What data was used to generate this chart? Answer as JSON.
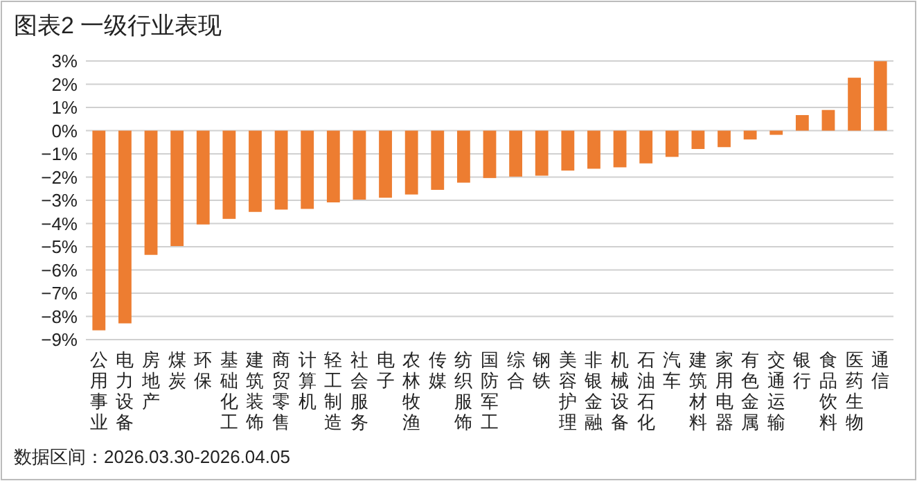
{
  "chart_data": {
    "type": "bar",
    "title": "图表2 一级行业表现",
    "categories": [
      "公用事业",
      "电力设备",
      "房地产",
      "煤炭",
      "环保",
      "基础化工",
      "建筑装饰",
      "商贸零售",
      "计算机",
      "轻工制造",
      "社会服务",
      "电子",
      "农林牧渔",
      "传媒",
      "纺织服饰",
      "国防军工",
      "综合",
      "钢铁",
      "美容护理",
      "非银金融",
      "机械设备",
      "石油石化",
      "汽车",
      "建筑材料",
      "家用电器",
      "有色金属",
      "交通运输",
      "银行",
      "食品饮料",
      "医药生物",
      "通信"
    ],
    "values": [
      -8.6,
      -8.3,
      -5.35,
      -4.97,
      -4.04,
      -3.8,
      -3.5,
      -3.4,
      -3.37,
      -3.09,
      -2.97,
      -2.89,
      -2.75,
      -2.55,
      -2.24,
      -2.04,
      -1.98,
      -1.94,
      -1.72,
      -1.64,
      -1.58,
      -1.41,
      -1.13,
      -0.79,
      -0.71,
      -0.38,
      -0.18,
      0.67,
      0.89,
      2.28,
      2.99
    ],
    "color": "#ed7d31",
    "ylim": [
      -9,
      3
    ],
    "yticks": [
      {
        "value": -9,
        "label": "−9%"
      },
      {
        "value": -8,
        "label": "−8%"
      },
      {
        "value": -7,
        "label": "−7%"
      },
      {
        "value": -6,
        "label": "−6%"
      },
      {
        "value": -5,
        "label": "−5%"
      },
      {
        "value": -4,
        "label": "−4%"
      },
      {
        "value": -3,
        "label": "−3%"
      },
      {
        "value": -2,
        "label": "−2%"
      },
      {
        "value": -1,
        "label": "−1%"
      },
      {
        "value": 0,
        "label": "0%"
      },
      {
        "value": 1,
        "label": "1%"
      },
      {
        "value": 2,
        "label": "2%"
      },
      {
        "value": 3,
        "label": "3%"
      }
    ],
    "grid": "y",
    "annotations": [
      "数据区间：2026.03.30-2026.04.05"
    ]
  }
}
